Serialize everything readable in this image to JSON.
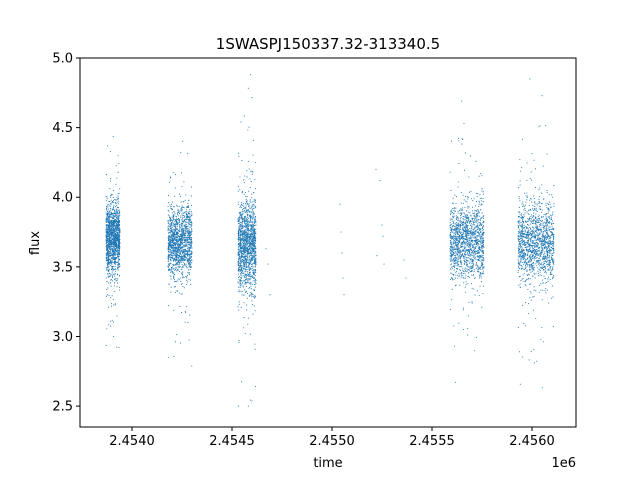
{
  "chart_data": {
    "type": "scatter",
    "title": "1SWASPJ150337.32-313340.5",
    "xlabel": "time",
    "ylabel": "flux",
    "x_offset_label": "1e6",
    "x_ticks": [
      "2.4540",
      "2.4545",
      "2.4550",
      "2.4555",
      "2.4560"
    ],
    "y_ticks": [
      "2.5",
      "3.0",
      "3.5",
      "4.0",
      "4.5",
      "5.0"
    ],
    "xlim": [
      2453740,
      2456220
    ],
    "ylim": [
      2.35,
      5.0
    ],
    "grid": false,
    "point_color": "#1f77b4",
    "series": [
      {
        "observing_seasons": [
          {
            "x_range": [
              2453870,
              2453940
            ],
            "flux_median": 3.7,
            "flux_spread": 0.12,
            "flux_range": [
              2.47,
              4.78
            ]
          },
          {
            "x_range": [
              2454180,
              2454300
            ],
            "flux_median": 3.68,
            "flux_spread": 0.12,
            "flux_range": [
              2.5,
              4.86
            ]
          },
          {
            "x_range": [
              2454530,
              2454620
            ],
            "flux_median": 3.65,
            "flux_spread": 0.15,
            "flux_range": [
              2.5,
              4.88
            ]
          },
          {
            "x_range": [
              2455590,
              2455760
            ],
            "flux_median": 3.68,
            "flux_spread": 0.13,
            "flux_range": [
              2.5,
              4.7
            ]
          },
          {
            "x_range": [
              2455930,
              2456110
            ],
            "flux_median": 3.67,
            "flux_spread": 0.14,
            "flux_range": [
              2.46,
              4.85
            ]
          }
        ],
        "isolated_points": [
          [
            2454670,
            3.63
          ],
          [
            2454680,
            3.52
          ],
          [
            2454690,
            3.3
          ],
          [
            2455040,
            3.95
          ],
          [
            2455045,
            3.75
          ],
          [
            2455050,
            3.6
          ],
          [
            2455055,
            3.42
          ],
          [
            2455060,
            3.3
          ],
          [
            2455220,
            4.2
          ],
          [
            2455225,
            3.58
          ],
          [
            2455240,
            4.12
          ],
          [
            2455250,
            3.8
          ],
          [
            2455255,
            3.72
          ],
          [
            2455260,
            3.52
          ],
          [
            2455360,
            3.55
          ],
          [
            2455370,
            3.42
          ]
        ]
      }
    ]
  }
}
